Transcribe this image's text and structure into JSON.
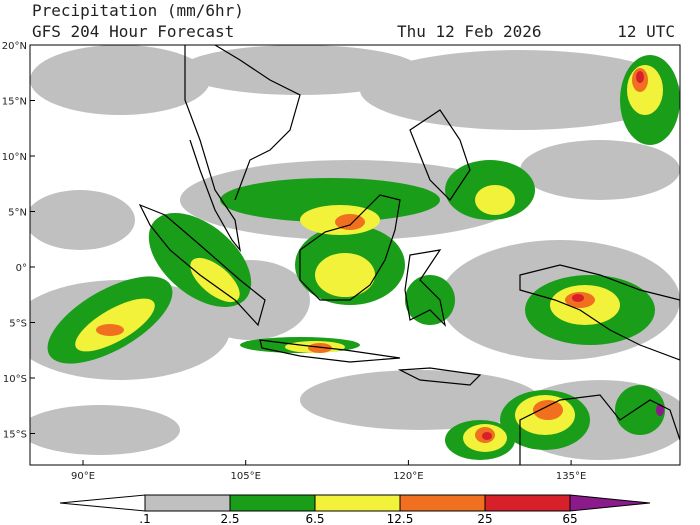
{
  "header": {
    "title": "Precipitation (mm/6hr)",
    "subtitle": "GFS 204 Hour Forecast",
    "date": "Thu 12 Feb 2026",
    "time": "12 UTC"
  },
  "map": {
    "lat_labels": [
      "20°N",
      "15°N",
      "10°N",
      "5°N",
      "0°",
      "5°S",
      "10°S",
      "15°S"
    ],
    "lon_labels": [
      "90°E",
      "105°E",
      "120°E",
      "135°E"
    ]
  },
  "colorbar": {
    "labels": [
      ".1",
      "2.5",
      "6.5",
      "12.5",
      "25",
      "65"
    ]
  }
}
